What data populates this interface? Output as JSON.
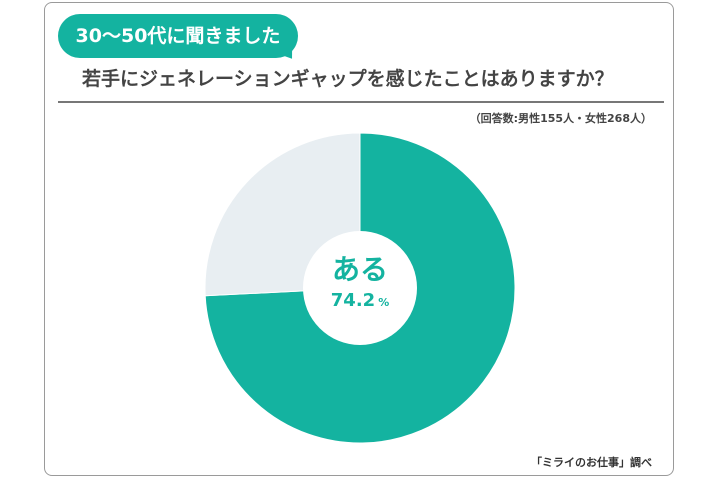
{
  "header": {
    "badge": "30〜50代に聞きました",
    "title": "若手にジェネレーションギャップを感じたことはありますか？",
    "respondents": "（回答数:男性155人・女性268人）"
  },
  "footer": {
    "source": "「ミライのお仕事」調べ"
  },
  "colors": {
    "accent": "#14b3a0",
    "other": "#e8eef2"
  },
  "chart_data": {
    "type": "pie",
    "donut": true,
    "categories": [
      "ある",
      ""
    ],
    "values": [
      74.2,
      25.8
    ],
    "colors": [
      "#14b3a0",
      "#e8eef2"
    ],
    "center_label": "ある",
    "center_value": "74.2",
    "center_unit": "%"
  }
}
